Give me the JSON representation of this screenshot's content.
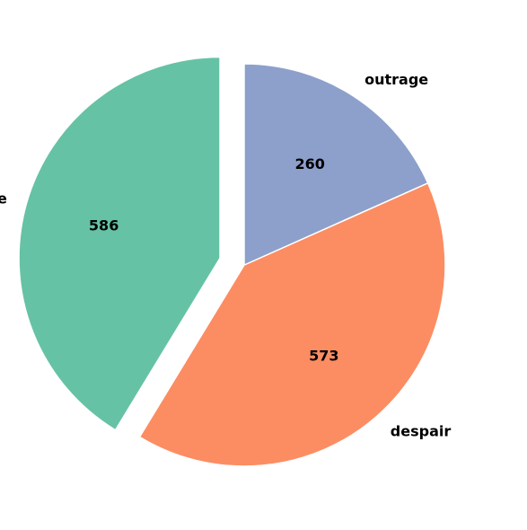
{
  "chart_data": {
    "type": "pie",
    "slices": [
      {
        "label": "hope",
        "value": 586,
        "value_label": "586",
        "color": "#66c2a5",
        "exploded": true
      },
      {
        "label": "despair",
        "value": 573,
        "value_label": "573",
        "color": "#fc8d62",
        "exploded": false
      },
      {
        "label": "outrage",
        "value": 260,
        "value_label": "260",
        "color": "#8da0cb",
        "exploded": false
      }
    ],
    "title": "",
    "legend": "none"
  }
}
